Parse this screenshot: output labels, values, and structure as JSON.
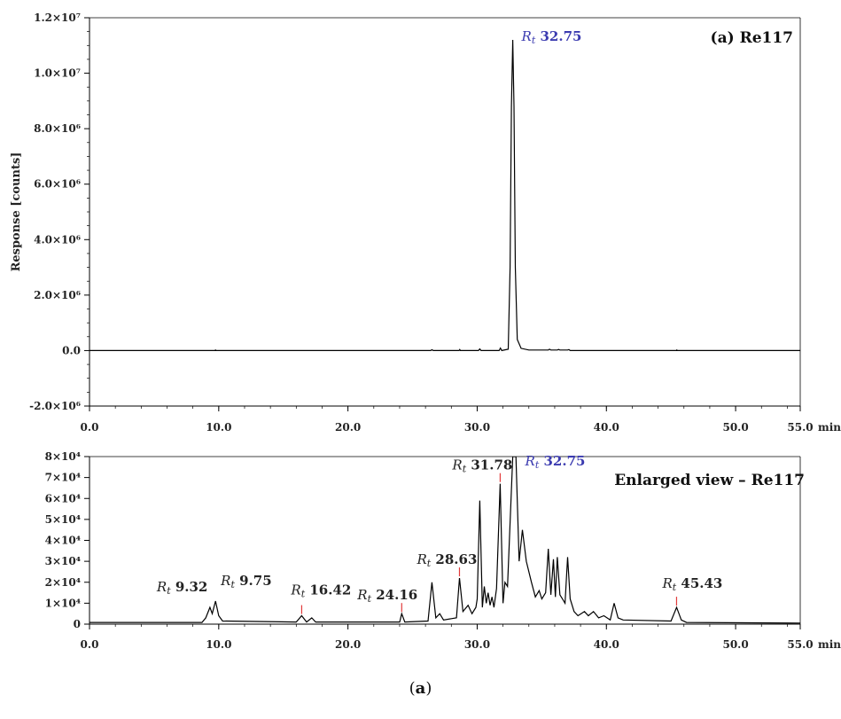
{
  "chart_data": [
    {
      "type": "line",
      "title": "(a) Re117",
      "ylabel": "Response [counts]",
      "x_unit_label": "min",
      "xlim": [
        0,
        55
      ],
      "ylim": [
        -2000000,
        12000000
      ],
      "x_ticks": [
        0,
        10,
        20,
        30,
        40,
        50,
        55
      ],
      "x_tick_labels": [
        "0.0",
        "10.0",
        "20.0",
        "30.0",
        "40.0",
        "50.0",
        "55.0"
      ],
      "y_ticks": [
        -2000000,
        0,
        2000000,
        4000000,
        6000000,
        8000000,
        10000000,
        12000000
      ],
      "y_tick_labels": [
        "-2.0×10⁶",
        "0.0",
        "2.0×10⁶",
        "4.0×10⁶",
        "6.0×10⁶",
        "8.0×10⁶",
        "1.0×10⁷",
        "1.2×10⁷"
      ],
      "grid": false,
      "series": [
        {
          "color": "#000000",
          "x": [
            0,
            9.7,
            9.75,
            9.8,
            26.4,
            26.5,
            26.6,
            28.6,
            28.65,
            28.7,
            30.1,
            30.2,
            30.3,
            31.7,
            31.8,
            31.9,
            32.4,
            32.55,
            32.65,
            32.75,
            32.85,
            32.95,
            33.1,
            33.4,
            34.0,
            35.5,
            35.6,
            35.7,
            36.2,
            36.3,
            36.4,
            37.0,
            37.1,
            37.2,
            45.4,
            45.45,
            45.5,
            55
          ],
          "y": [
            0,
            0,
            20000,
            0,
            0,
            30000,
            0,
            0,
            40000,
            0,
            0,
            60000,
            0,
            0,
            90000,
            0,
            50000,
            3000000,
            8800000,
            11200000,
            8800000,
            3000000,
            400000,
            80000,
            20000,
            20000,
            50000,
            20000,
            20000,
            40000,
            20000,
            20000,
            35000,
            0,
            0,
            20000,
            0,
            0
          ],
          "peak_labels": [
            {
              "x": 32.75,
              "y": 11200000,
              "prefix": "Rt",
              "value": "32.75",
              "color": "#3b3bb0"
            }
          ]
        }
      ]
    },
    {
      "type": "line",
      "title": "Enlarged view – Re117",
      "x_unit_label": "min",
      "xlim": [
        0,
        55
      ],
      "ylim": [
        0,
        80000
      ],
      "x_ticks": [
        0,
        10,
        20,
        30,
        40,
        50,
        55
      ],
      "x_tick_labels": [
        "0.0",
        "10.0",
        "20.0",
        "30.0",
        "40.0",
        "50.0",
        "55.0"
      ],
      "y_ticks": [
        0,
        10000,
        20000,
        30000,
        40000,
        50000,
        60000,
        70000,
        80000
      ],
      "y_tick_labels": [
        "0",
        "1×10⁴",
        "2×10⁴",
        "3×10⁴",
        "4×10⁴",
        "5×10⁴",
        "6×10⁴",
        "7×10⁴",
        "8×10⁴"
      ],
      "grid": false,
      "series": [
        {
          "color": "#000000",
          "x": [
            0,
            8.7,
            9.0,
            9.32,
            9.5,
            9.75,
            10.0,
            10.3,
            16.0,
            16.42,
            16.8,
            17.2,
            17.5,
            24.0,
            24.16,
            24.4,
            26.2,
            26.5,
            26.8,
            27.1,
            27.4,
            28.4,
            28.63,
            28.9,
            29.3,
            29.6,
            29.9,
            30.0,
            30.2,
            30.4,
            30.55,
            30.7,
            30.85,
            31.0,
            31.15,
            31.3,
            31.5,
            31.78,
            32.0,
            32.15,
            32.35,
            32.75,
            33.0,
            33.25,
            33.5,
            33.8,
            34.2,
            34.5,
            34.8,
            35.0,
            35.3,
            35.5,
            35.7,
            35.9,
            36.05,
            36.2,
            36.4,
            36.6,
            36.8,
            37.0,
            37.2,
            37.5,
            37.8,
            38.3,
            38.6,
            39.0,
            39.4,
            39.8,
            40.3,
            40.6,
            40.9,
            41.3,
            45.0,
            45.43,
            45.8,
            46.2,
            55
          ],
          "y": [
            800,
            800,
            3000,
            8000,
            5000,
            11000,
            4000,
            1500,
            1000,
            4000,
            1000,
            3000,
            1000,
            1000,
            5000,
            1000,
            1500,
            20000,
            3000,
            5000,
            2000,
            3000,
            22000,
            6000,
            9000,
            5000,
            8000,
            12000,
            59000,
            8000,
            18000,
            10000,
            15000,
            9000,
            13000,
            8000,
            17000,
            67000,
            10000,
            20000,
            18000,
            80000,
            80000,
            30000,
            45000,
            30000,
            20000,
            13000,
            16000,
            12000,
            15000,
            36000,
            14000,
            31000,
            13000,
            32000,
            14000,
            12000,
            10000,
            32000,
            12000,
            6000,
            4000,
            6000,
            4000,
            6000,
            3000,
            4000,
            2000,
            10000,
            3000,
            2000,
            1500,
            8000,
            2000,
            800,
            500
          ],
          "peak_labels": [
            {
              "x": 9.32,
              "y": 8000,
              "prefix": "Rt",
              "value": "9.32",
              "color": "#222222"
            },
            {
              "x": 9.75,
              "y": 11000,
              "prefix": "Rt",
              "value": "9.75",
              "color": "#222222"
            },
            {
              "x": 16.42,
              "y": 4000,
              "prefix": "Rt",
              "value": "16.42",
              "color": "#222222"
            },
            {
              "x": 24.16,
              "y": 5000,
              "prefix": "Rt",
              "value": "24.16",
              "color": "#222222"
            },
            {
              "x": 28.63,
              "y": 22000,
              "prefix": "Rt",
              "value": "28.63",
              "color": "#222222"
            },
            {
              "x": 31.78,
              "y": 67000,
              "prefix": "Rt",
              "value": "31.78",
              "color": "#222222"
            },
            {
              "x": 32.75,
              "y": 80000,
              "prefix": "Rt",
              "value": "32.75",
              "color": "#3b3bb0"
            },
            {
              "x": 45.43,
              "y": 8000,
              "prefix": "Rt",
              "value": "45.43",
              "color": "#222222"
            }
          ]
        }
      ]
    }
  ],
  "caption": {
    "open": "(",
    "letter": "a",
    "close": ")"
  }
}
